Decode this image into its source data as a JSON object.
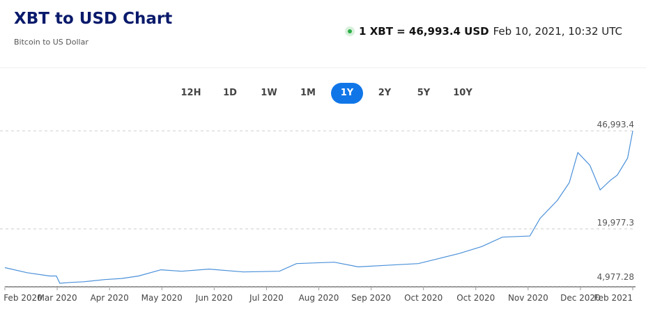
{
  "header": {
    "title": "XBT to USD Chart",
    "subtitle": "Bitcoin to US Dollar"
  },
  "rate": {
    "status_color": "#2fae48",
    "value": "1 XBT = 46,993.4 USD",
    "timestamp": "Feb 10, 2021, 10:32 UTC"
  },
  "ranges": [
    {
      "label": "12H"
    },
    {
      "label": "1D"
    },
    {
      "label": "1W"
    },
    {
      "label": "1M"
    },
    {
      "label": "1Y",
      "active": true
    },
    {
      "label": "2Y"
    },
    {
      "label": "5Y"
    },
    {
      "label": "10Y"
    }
  ],
  "chart_data": {
    "type": "line",
    "line_color": "#4a90d9",
    "ylim": [
      4977.28,
      46993.4
    ],
    "y_ticks": [
      "46,993.4",
      "19,977.3",
      "4,977.28"
    ],
    "y_tick_values": [
      46993.4,
      19977.3,
      4977.28
    ],
    "x_range": [
      "2020-02-10",
      "2021-02-10"
    ],
    "x_ticks": [
      "Feb 2020",
      "Mar 2020",
      "Apr 2020",
      "May 2020",
      "Jun 2020",
      "Jul 2020",
      "Aug 2020",
      "Sep 2020",
      "Oct 2020",
      "Oct 2020",
      "Nov 2020",
      "Dec 2020",
      "Feb 2021"
    ],
    "grid": "dashed horizontal at y ticks",
    "points": [
      [
        "2020-02-10",
        9300
      ],
      [
        "2020-02-23",
        7900
      ],
      [
        "2020-03-07",
        7000
      ],
      [
        "2020-03-11",
        7000
      ],
      [
        "2020-03-13",
        4980
      ],
      [
        "2020-03-19",
        5200
      ],
      [
        "2020-03-27",
        5400
      ],
      [
        "2020-04-08",
        6000
      ],
      [
        "2020-04-18",
        6300
      ],
      [
        "2020-04-28",
        7000
      ],
      [
        "2020-05-11",
        8700
      ],
      [
        "2020-05-23",
        8300
      ],
      [
        "2020-06-08",
        8900
      ],
      [
        "2020-06-28",
        8100
      ],
      [
        "2020-07-19",
        8300
      ],
      [
        "2020-07-29",
        10400
      ],
      [
        "2020-08-20",
        10800
      ],
      [
        "2020-09-03",
        9500
      ],
      [
        "2020-09-22",
        10000
      ],
      [
        "2020-10-08",
        10400
      ],
      [
        "2020-10-20",
        11800
      ],
      [
        "2020-11-01",
        13200
      ],
      [
        "2020-11-14",
        15100
      ],
      [
        "2020-11-26",
        17700
      ],
      [
        "2020-12-12",
        18000
      ],
      [
        "2020-12-18",
        22900
      ],
      [
        "2020-12-28",
        27800
      ],
      [
        "2021-01-04",
        32700
      ],
      [
        "2021-01-09",
        41000
      ],
      [
        "2021-01-16",
        37500
      ],
      [
        "2021-01-22",
        30700
      ],
      [
        "2021-01-28",
        33400
      ],
      [
        "2021-02-01",
        34800
      ],
      [
        "2021-02-07",
        39500
      ],
      [
        "2021-02-10",
        46993.4
      ]
    ]
  }
}
